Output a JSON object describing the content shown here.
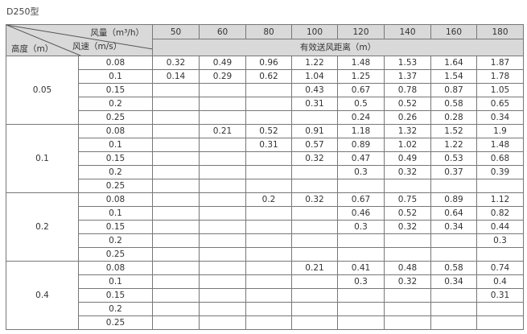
{
  "title": "D250型",
  "header": {
    "flow_label": "风量（m³/h）",
    "speed_label": "风速（m/s）",
    "height_label": "高度（m）",
    "distance_label": "有效送风距离（m）",
    "flows": [
      "50",
      "60",
      "80",
      "100",
      "120",
      "140",
      "160",
      "180"
    ]
  },
  "groups": [
    {
      "height": "0.05",
      "rows": [
        {
          "speed": "0.08",
          "values": [
            "0.32",
            "0.49",
            "0.96",
            "1.22",
            "1.48",
            "1.53",
            "1.64",
            "1.87"
          ]
        },
        {
          "speed": "0.1",
          "values": [
            "0.14",
            "0.29",
            "0.62",
            "1.04",
            "1.25",
            "1.37",
            "1.54",
            "1.78"
          ]
        },
        {
          "speed": "0.15",
          "values": [
            "",
            "",
            "",
            "0.43",
            "0.67",
            "0.78",
            "0.87",
            "1.05"
          ]
        },
        {
          "speed": "0.2",
          "values": [
            "",
            "",
            "",
            "0.31",
            "0.5",
            "0.52",
            "0.58",
            "0.65"
          ]
        },
        {
          "speed": "0.25",
          "values": [
            "",
            "",
            "",
            "",
            "0.24",
            "0.26",
            "0.28",
            "0.34"
          ]
        }
      ]
    },
    {
      "height": "0.1",
      "rows": [
        {
          "speed": "0.08",
          "values": [
            "",
            "0.21",
            "0.52",
            "0.91",
            "1.18",
            "1.32",
            "1.52",
            "1.9"
          ]
        },
        {
          "speed": "0.1",
          "values": [
            "",
            "",
            "0.31",
            "0.57",
            "0.89",
            "1.02",
            "1.22",
            "1.48"
          ]
        },
        {
          "speed": "0.15",
          "values": [
            "",
            "",
            "",
            "0.32",
            "0.47",
            "0.49",
            "0.53",
            "0.68"
          ]
        },
        {
          "speed": "0.2",
          "values": [
            "",
            "",
            "",
            "",
            "0.3",
            "0.32",
            "0.37",
            "0.39"
          ]
        },
        {
          "speed": "0.25",
          "values": [
            "",
            "",
            "",
            "",
            "",
            "",
            "",
            ""
          ]
        }
      ]
    },
    {
      "height": "0.2",
      "rows": [
        {
          "speed": "0.08",
          "values": [
            "",
            "",
            "0.2",
            "0.32",
            "0.67",
            "0.75",
            "0.89",
            "1.12"
          ]
        },
        {
          "speed": "0.1",
          "values": [
            "",
            "",
            "",
            "",
            "0.46",
            "0.52",
            "0.64",
            "0.82"
          ]
        },
        {
          "speed": "0.15",
          "values": [
            "",
            "",
            "",
            "",
            "0.3",
            "0.32",
            "0.34",
            "0.44"
          ]
        },
        {
          "speed": "0.2",
          "values": [
            "",
            "",
            "",
            "",
            "",
            "",
            "",
            "0.3"
          ]
        },
        {
          "speed": "0.25",
          "values": [
            "",
            "",
            "",
            "",
            "",
            "",
            "",
            ""
          ]
        }
      ]
    },
    {
      "height": "0.4",
      "rows": [
        {
          "speed": "0.08",
          "values": [
            "",
            "",
            "",
            "0.21",
            "0.41",
            "0.48",
            "0.58",
            "0.74"
          ]
        },
        {
          "speed": "0.1",
          "values": [
            "",
            "",
            "",
            "",
            "0.3",
            "0.32",
            "0.34",
            "0.4"
          ]
        },
        {
          "speed": "0.15",
          "values": [
            "",
            "",
            "",
            "",
            "",
            "",
            "",
            "0.31"
          ]
        },
        {
          "speed": "0.2",
          "values": [
            "",
            "",
            "",
            "",
            "",
            "",
            "",
            ""
          ]
        },
        {
          "speed": "0.25",
          "values": [
            "",
            "",
            "",
            "",
            "",
            "",
            "",
            ""
          ]
        }
      ]
    }
  ]
}
